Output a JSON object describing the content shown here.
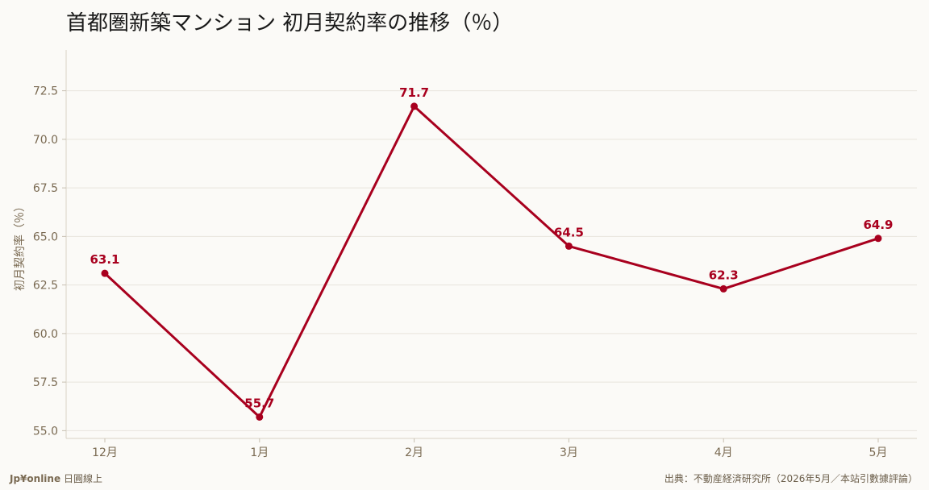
{
  "chart_data": {
    "type": "line",
    "title": "首都圏新築マンション 初月契約率の推移（％）",
    "ylabel": "初月契約率（％）",
    "xlabel": "",
    "categories": [
      "12月",
      "1月",
      "2月",
      "3月",
      "4月",
      "5月"
    ],
    "series": [
      {
        "values": [
          63.1,
          55.7,
          71.7,
          64.5,
          62.3,
          64.9
        ],
        "color": "#a8001e"
      }
    ],
    "ylim": [
      54.6,
      74.6
    ],
    "yticks": [
      55.0,
      57.5,
      60.0,
      62.5,
      65.0,
      67.5,
      70.0,
      72.5
    ],
    "grid": "horizontal",
    "data_labels": true
  },
  "footer": {
    "brand": "Jp¥online",
    "brand_sub": "日圓線上",
    "source": "出典：不動産経済研究所（2026年5月／本站引數據評論）"
  }
}
